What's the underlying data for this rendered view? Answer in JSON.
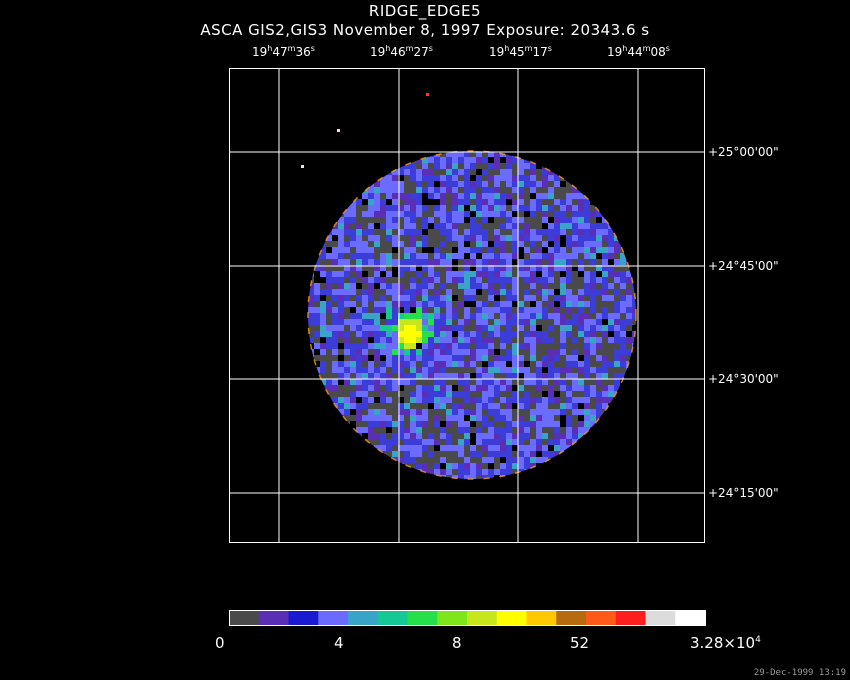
{
  "title": "RIDGE_EDGE5",
  "subtitle": "ASCA GIS2,GIS3 November 8, 1997 Exposure: 20343.6 s",
  "ra_labels": [
    {
      "h": "19",
      "m": "47",
      "s": "36"
    },
    {
      "h": "19",
      "m": "46",
      "s": "27"
    },
    {
      "h": "19",
      "m": "45",
      "s": "17"
    },
    {
      "h": "19",
      "m": "44",
      "s": "08"
    }
  ],
  "dec_labels": [
    "+25°00'00\"",
    "+24°45'00\"",
    "+24°30'00\"",
    "+24°15'00\""
  ],
  "colorbar": {
    "colors": [
      "#4a4a4a",
      "#5a2fb5",
      "#1a1ad0",
      "#6b6bff",
      "#3aa3c8",
      "#15c896",
      "#25e04a",
      "#7fe61c",
      "#c8e61c",
      "#ffff00",
      "#ffc800",
      "#b86a10",
      "#ff5a1a",
      "#ff1e1e",
      "#dcdcdc",
      "#ffffff"
    ],
    "labels": [
      "0",
      "4",
      "8",
      "52"
    ],
    "max_label_base": "3.28×10",
    "max_label_exp": "4"
  },
  "timestamp": "29-Dec-1999 13:19"
}
